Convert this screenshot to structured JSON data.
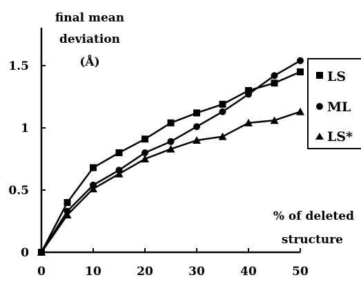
{
  "chart_data": {
    "type": "line",
    "ylabel_lines": [
      "final mean",
      "deviation",
      "(Å)"
    ],
    "xlabel_lines": [
      "% of deleted",
      "structure"
    ],
    "x": [
      0,
      5,
      10,
      15,
      20,
      25,
      30,
      35,
      40,
      45,
      50
    ],
    "xticks": [
      "0",
      "10",
      "20",
      "30",
      "40",
      "50"
    ],
    "yticks": [
      "0",
      "0.5",
      "1",
      "1.5"
    ],
    "xlim": [
      0,
      50
    ],
    "ylim": [
      0,
      1.85
    ],
    "grid": false,
    "legend_position": "right",
    "series": [
      {
        "name": "LS",
        "marker": "square",
        "values": [
          0,
          0.4,
          0.68,
          0.8,
          0.91,
          1.04,
          1.12,
          1.19,
          1.3,
          1.36,
          1.45
        ]
      },
      {
        "name": "ML",
        "marker": "circle",
        "values": [
          0,
          0.33,
          0.54,
          0.66,
          0.8,
          0.89,
          1.01,
          1.13,
          1.27,
          1.42,
          1.54
        ]
      },
      {
        "name": "LS*",
        "marker": "triangle",
        "values": [
          0,
          0.3,
          0.51,
          0.63,
          0.75,
          0.83,
          0.9,
          0.93,
          1.04,
          1.06,
          1.13
        ]
      }
    ]
  }
}
